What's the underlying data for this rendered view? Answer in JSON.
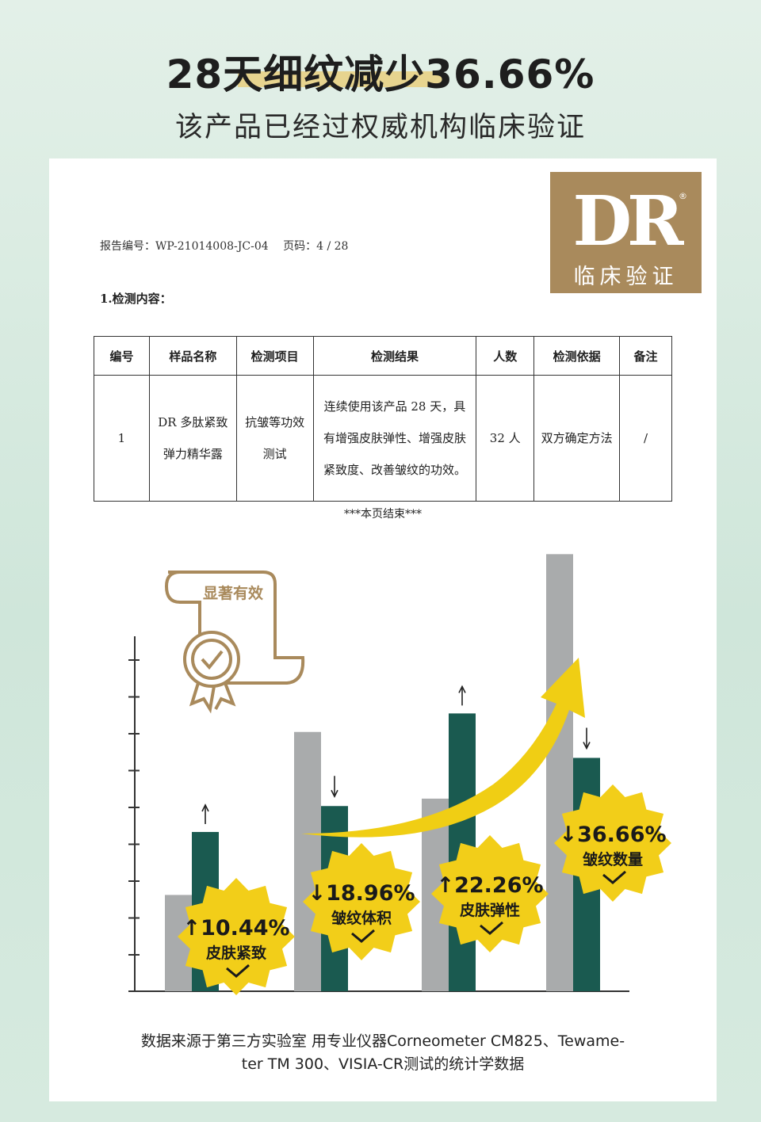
{
  "headline": "28天细纹减少36.66%",
  "subheadline": "该产品已经过权威机构临床验证",
  "logo": {
    "mark": "DR",
    "registered": "®",
    "caption": "临床验证"
  },
  "report": {
    "report_no": "报告编号：WP-21014008-JC-04",
    "page": "页码：4 / 28",
    "section": "1.检测内容：",
    "headers": [
      "编号",
      "样品名称",
      "检测项目",
      "检测结果",
      "人数",
      "检测依据",
      "备注"
    ],
    "row": [
      "1",
      "DR 多肽紧致弹力精华露",
      "抗皱等功效测试",
      "连续使用该产品 28 天，具有增强皮肤弹性、增强皮肤紧致度、改善皱纹的功效。",
      "32 人",
      "双方确定方法",
      "/"
    ],
    "end_note": "***本页结束***"
  },
  "badge": "显著有效",
  "chart_data": {
    "type": "bar",
    "categories": [
      "皮肤紧致",
      "皱纹体积",
      "皮肤弹性",
      "皱纹数量"
    ],
    "series": [
      {
        "color": "#a9abac",
        "values": [
          2.6,
          7.0,
          5.2,
          11.8
        ]
      },
      {
        "color": "#1a5a50",
        "values": [
          4.3,
          5.0,
          7.5,
          6.3
        ]
      }
    ],
    "changes": [
      {
        "direction": "up",
        "value": "10.44%",
        "label": "皮肤紧致"
      },
      {
        "direction": "down",
        "value": "18.96%",
        "label": "皱纹体积"
      },
      {
        "direction": "up",
        "value": "22.26%",
        "label": "皮肤弹性"
      },
      {
        "direction": "down",
        "value": "36.66%",
        "label": "皱纹数量"
      }
    ],
    "ylim": [
      0,
      12
    ],
    "colors": {
      "burst": "#f2ce19",
      "arrow": "#f0ce14",
      "text": "#1a1a1a"
    }
  },
  "footer": {
    "line1": "数据来源于第三方实验室  用专业仪器Corneometer CM825、Tewame-",
    "line2": "ter TM 300、VISIA-CR测试的统计学数据"
  }
}
